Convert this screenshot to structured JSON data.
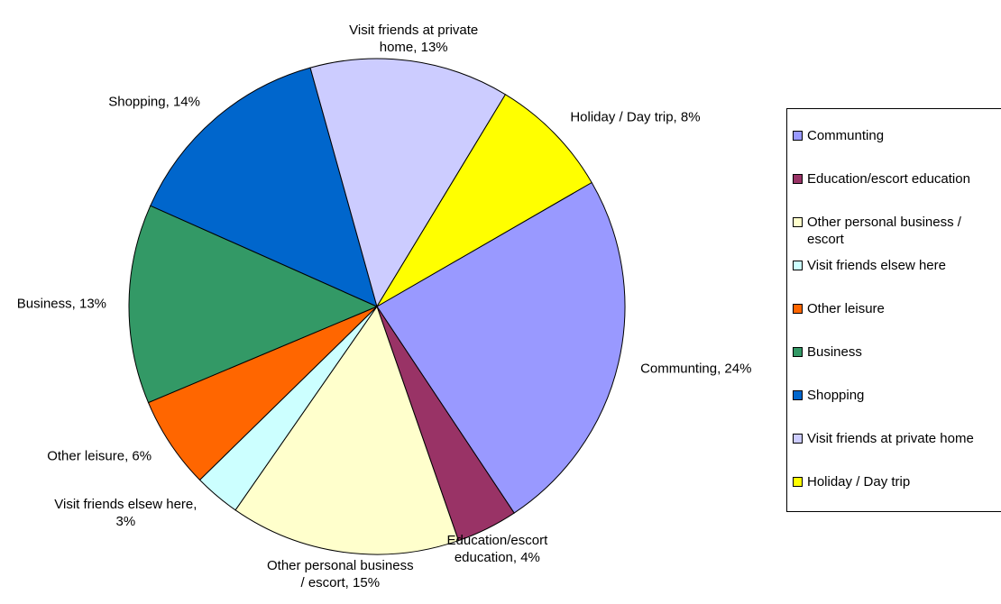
{
  "chart_data": {
    "type": "pie",
    "categories": [
      "Communting",
      "Education/escort education",
      "Other personal business / escort",
      "Visit friends elsew here",
      "Other leisure",
      "Business",
      "Shopping",
      "Visit friends at private home",
      "Holiday / Day trip"
    ],
    "values": [
      24,
      4,
      15,
      3,
      6,
      13,
      14,
      13,
      8
    ],
    "value_labels": [
      "Communting, 24%",
      "Education/escort education, 4%",
      "Other personal business / escort, 15%",
      "Visit friends elsew here, 3%",
      "Other leisure, 6%",
      "Business, 13%",
      "Shopping, 14%",
      "Visit friends at private home, 13%",
      "Holiday / Day trip, 8%"
    ],
    "colors": [
      "#9999ff",
      "#993366",
      "#ffffcc",
      "#ccffff",
      "#ff6600",
      "#339966",
      "#0066cc",
      "#ccccff",
      "#ffff00"
    ],
    "legend": "right"
  }
}
